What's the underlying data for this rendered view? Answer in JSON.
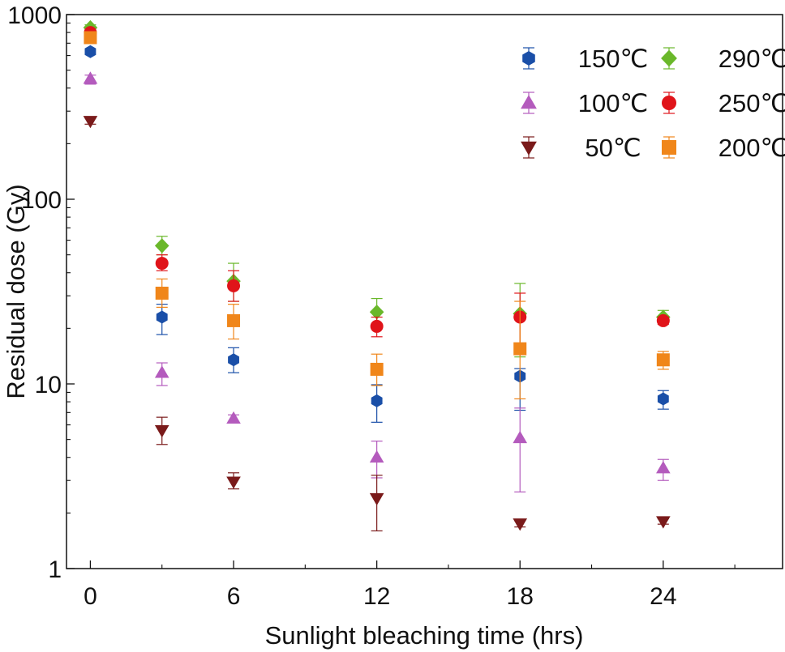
{
  "chart_data": {
    "type": "scatter",
    "title": "",
    "xlabel": "Sunlight bleaching time (hrs)",
    "ylabel": "Residual dose (Gy)",
    "xlim": [
      -1,
      29
    ],
    "ylim": [
      1,
      1000
    ],
    "yscale": "log",
    "xticks": [
      0,
      6,
      12,
      18,
      24
    ],
    "xtick_labels": [
      "0",
      "6",
      "12",
      "18",
      "24"
    ],
    "yticks": [
      1,
      10,
      100,
      1000
    ],
    "ytick_labels": [
      "1",
      "10",
      "100",
      "1000"
    ],
    "grid": false,
    "legend_position": "top-right",
    "series": [
      {
        "name": "150℃",
        "marker": "hexagon",
        "color": "#1a4fa8",
        "points": [
          {
            "x": 0,
            "y": 630,
            "lo": 630,
            "hi": 630
          },
          {
            "x": 3,
            "y": 23,
            "lo": 18.5,
            "hi": 27
          },
          {
            "x": 6,
            "y": 13.5,
            "lo": 11.5,
            "hi": 15.7
          },
          {
            "x": 12,
            "y": 8.1,
            "lo": 6.2,
            "hi": 9.9
          },
          {
            "x": 18,
            "y": 11,
            "lo": 7.2,
            "hi": 12.1
          },
          {
            "x": 24,
            "y": 8.3,
            "lo": 7.3,
            "hi": 9.2
          }
        ]
      },
      {
        "name": "100℃",
        "marker": "triangle-up",
        "color": "#b45bbd",
        "points": [
          {
            "x": 0,
            "y": 450,
            "lo": 420,
            "hi": 470
          },
          {
            "x": 3,
            "y": 11.5,
            "lo": 9.8,
            "hi": 13
          },
          {
            "x": 6,
            "y": 6.5,
            "lo": 6.2,
            "hi": 6.8
          },
          {
            "x": 12,
            "y": 4,
            "lo": 3.1,
            "hi": 4.9
          },
          {
            "x": 18,
            "y": 5.1,
            "lo": 2.6,
            "hi": 7.4
          },
          {
            "x": 24,
            "y": 3.5,
            "lo": 3.0,
            "hi": 3.9
          }
        ]
      },
      {
        "name": "50℃",
        "marker": "triangle-down",
        "color": "#7a1a1a",
        "points": [
          {
            "x": 0,
            "y": 265,
            "lo": 255,
            "hi": 275
          },
          {
            "x": 3,
            "y": 5.6,
            "lo": 4.7,
            "hi": 6.6
          },
          {
            "x": 6,
            "y": 2.95,
            "lo": 2.7,
            "hi": 3.3
          },
          {
            "x": 12,
            "y": 2.4,
            "lo": 1.6,
            "hi": 3.2
          },
          {
            "x": 18,
            "y": 1.75,
            "lo": 1.68,
            "hi": 1.82
          },
          {
            "x": 24,
            "y": 1.8,
            "lo": 1.74,
            "hi": 1.86
          }
        ]
      },
      {
        "name": "290℃",
        "marker": "diamond",
        "color": "#6ab82a",
        "points": [
          {
            "x": 0,
            "y": 850,
            "lo": 820,
            "hi": 880
          },
          {
            "x": 3,
            "y": 56,
            "lo": 50,
            "hi": 63
          },
          {
            "x": 6,
            "y": 36,
            "lo": 28,
            "hi": 45
          },
          {
            "x": 12,
            "y": 24.5,
            "lo": 20,
            "hi": 29
          },
          {
            "x": 18,
            "y": 24,
            "lo": 14,
            "hi": 35
          },
          {
            "x": 24,
            "y": 23,
            "lo": 21.5,
            "hi": 25
          }
        ]
      },
      {
        "name": "250℃",
        "marker": "circle",
        "color": "#e0141a",
        "points": [
          {
            "x": 0,
            "y": 800,
            "lo": 770,
            "hi": 830
          },
          {
            "x": 3,
            "y": 45,
            "lo": 41,
            "hi": 50
          },
          {
            "x": 6,
            "y": 34,
            "lo": 28,
            "hi": 41
          },
          {
            "x": 12,
            "y": 20.5,
            "lo": 18,
            "hi": 23
          },
          {
            "x": 18,
            "y": 23,
            "lo": 15,
            "hi": 31
          },
          {
            "x": 24,
            "y": 22,
            "lo": 21,
            "hi": 23
          }
        ]
      },
      {
        "name": "200℃",
        "marker": "square",
        "color": "#f0861a",
        "points": [
          {
            "x": 0,
            "y": 750,
            "lo": 720,
            "hi": 780
          },
          {
            "x": 3,
            "y": 31,
            "lo": 26,
            "hi": 37
          },
          {
            "x": 6,
            "y": 22,
            "lo": 17.5,
            "hi": 27
          },
          {
            "x": 12,
            "y": 12,
            "lo": 9.8,
            "hi": 14.5
          },
          {
            "x": 18,
            "y": 15.5,
            "lo": 8.3,
            "hi": 28
          },
          {
            "x": 24,
            "y": 13.5,
            "lo": 12,
            "hi": 15
          }
        ]
      }
    ]
  }
}
